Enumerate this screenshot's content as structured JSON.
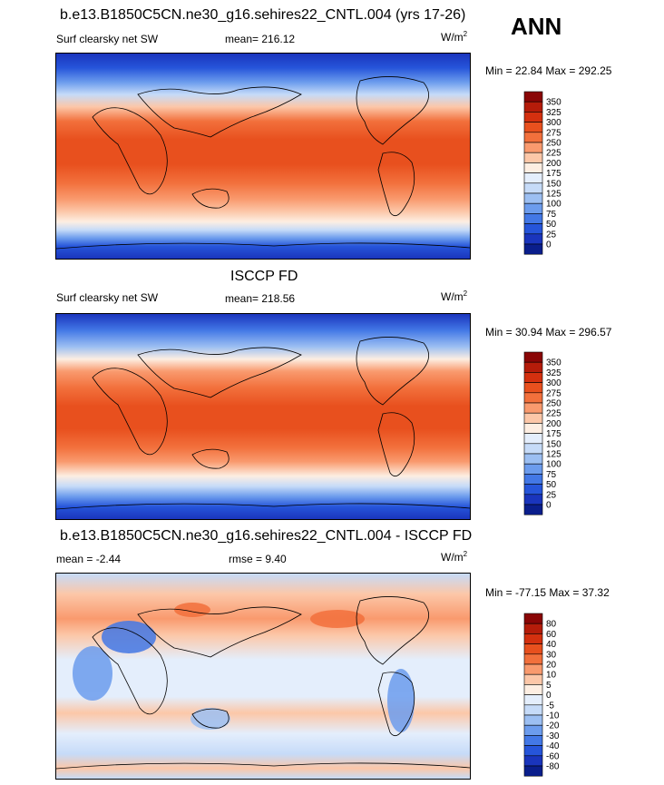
{
  "season": "ANN",
  "panels": [
    {
      "id": "model",
      "title": "b.e13.B1850C5CN.ne30_g16.sehires22_CNTL.004 (yrs 17-26)",
      "left_label": "Surf clearsky net SW",
      "center_label": "mean= 216.12",
      "units_base": "W/m",
      "units_sup": "2",
      "min_max": "Min =  22.84 Max = 292.25",
      "colorbar": {
        "levels": [
          "350",
          "325",
          "300",
          "275",
          "250",
          "225",
          "200",
          "175",
          "150",
          "125",
          "100",
          "75",
          "50",
          "25",
          "0"
        ],
        "colors": [
          "#8a0606",
          "#b51c0a",
          "#d4300f",
          "#e8501e",
          "#f2703c",
          "#f99a6e",
          "#fcc7a8",
          "#fdeee2",
          "#e4eefc",
          "#c6dbf8",
          "#9cbff2",
          "#6c9ced",
          "#4378e6",
          "#2655da",
          "#1a35bd",
          "#0a1e8c"
        ]
      }
    },
    {
      "id": "obs",
      "title": "ISCCP FD",
      "left_label": "Surf clearsky net SW",
      "center_label": "mean= 218.56",
      "units_base": "W/m",
      "units_sup": "2",
      "min_max": "Min =  30.94 Max = 296.57",
      "colorbar": {
        "levels": [
          "350",
          "325",
          "300",
          "275",
          "250",
          "225",
          "200",
          "175",
          "150",
          "125",
          "100",
          "75",
          "50",
          "25",
          "0"
        ],
        "colors": [
          "#8a0606",
          "#b51c0a",
          "#d4300f",
          "#e8501e",
          "#f2703c",
          "#f99a6e",
          "#fcc7a8",
          "#fdeee2",
          "#e4eefc",
          "#c6dbf8",
          "#9cbff2",
          "#6c9ced",
          "#4378e6",
          "#2655da",
          "#1a35bd",
          "#0a1e8c"
        ]
      }
    },
    {
      "id": "diff",
      "title": "b.e13.B1850C5CN.ne30_g16.sehires22_CNTL.004 - ISCCP FD",
      "left_label": "mean =  -2.44",
      "center_label": "rmse =   9.40",
      "units_base": "W/m",
      "units_sup": "2",
      "min_max": "Min = -77.15 Max =  37.32",
      "colorbar": {
        "levels": [
          "80",
          "60",
          "40",
          "30",
          "20",
          "10",
          "5",
          "0",
          "-5",
          "-10",
          "-20",
          "-30",
          "-40",
          "-60",
          "-80"
        ],
        "colors": [
          "#8a0606",
          "#b51c0a",
          "#d4300f",
          "#e8501e",
          "#f2703c",
          "#f99a6e",
          "#fcc7a8",
          "#fdeee2",
          "#e4eefc",
          "#c6dbf8",
          "#9cbff2",
          "#6c9ced",
          "#4378e6",
          "#2655da",
          "#1a35bd",
          "#0a1e8c"
        ]
      }
    }
  ]
}
